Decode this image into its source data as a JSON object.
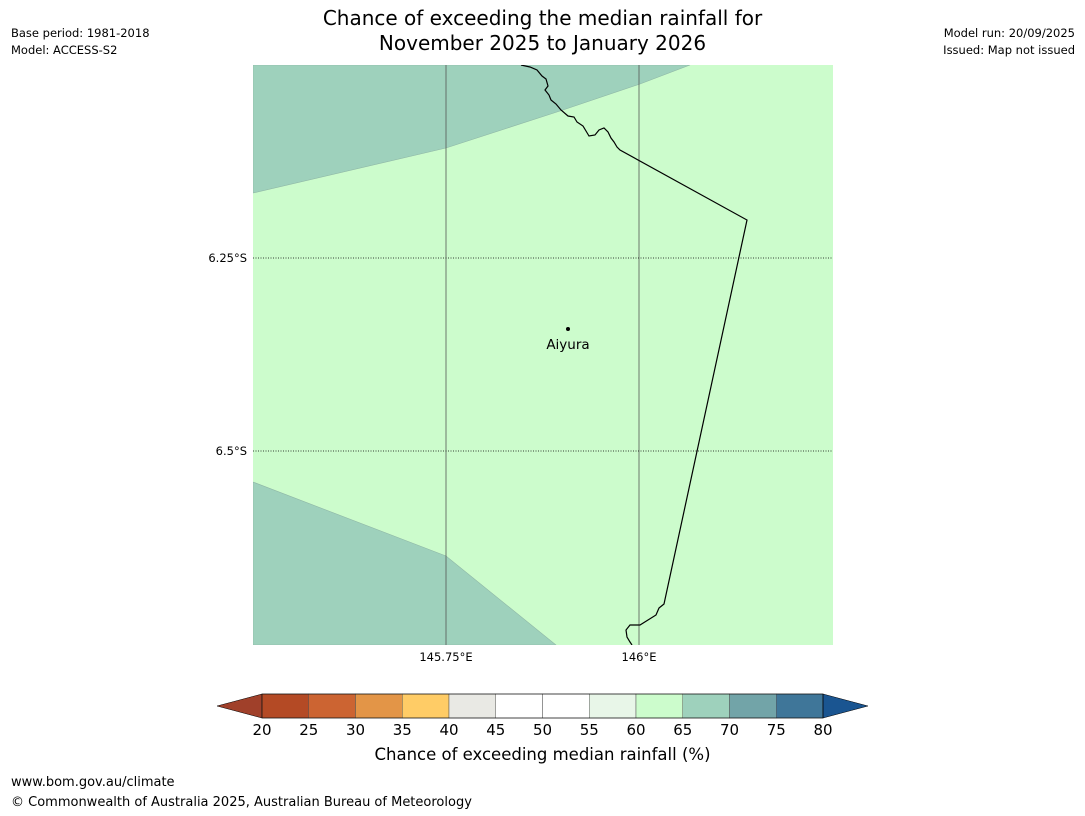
{
  "header": {
    "title_line1": "Chance of exceeding the median rainfall for",
    "title_line2": "November 2025 to January 2026",
    "base_period": "Base period: 1981-2018",
    "model": "Model: ACCESS-S2",
    "model_run": "Model run: 20/09/2025",
    "issued": "Issued: Map not issued"
  },
  "map": {
    "lat_labels": [
      "6.25°S",
      "6.5°S"
    ],
    "lon_labels": [
      "145.75°E",
      "146°E"
    ],
    "place_label": "Aiyura",
    "region_colors": {
      "band_60_65": "#ccfccc",
      "band_65_70": "#9ed1bc"
    }
  },
  "colorbar": {
    "tick_labels": [
      "20",
      "25",
      "30",
      "35",
      "40",
      "45",
      "50",
      "55",
      "60",
      "65",
      "70",
      "75",
      "80"
    ],
    "colors": [
      "#a0402a",
      "#b44a25",
      "#cc6432",
      "#e39547",
      "#ffcc66",
      "#e9e9e4",
      "#ffffff",
      "#ffffff",
      "#e8f6e8",
      "#ccfccc",
      "#9ed1bc",
      "#72a4a8",
      "#3f7699",
      "#1a5591"
    ],
    "label": "Chance of exceeding median rainfall (%)"
  },
  "footer": {
    "url": "www.bom.gov.au/climate",
    "copyright": "© Commonwealth of Australia 2025, Australian Bureau of Meteorology"
  }
}
